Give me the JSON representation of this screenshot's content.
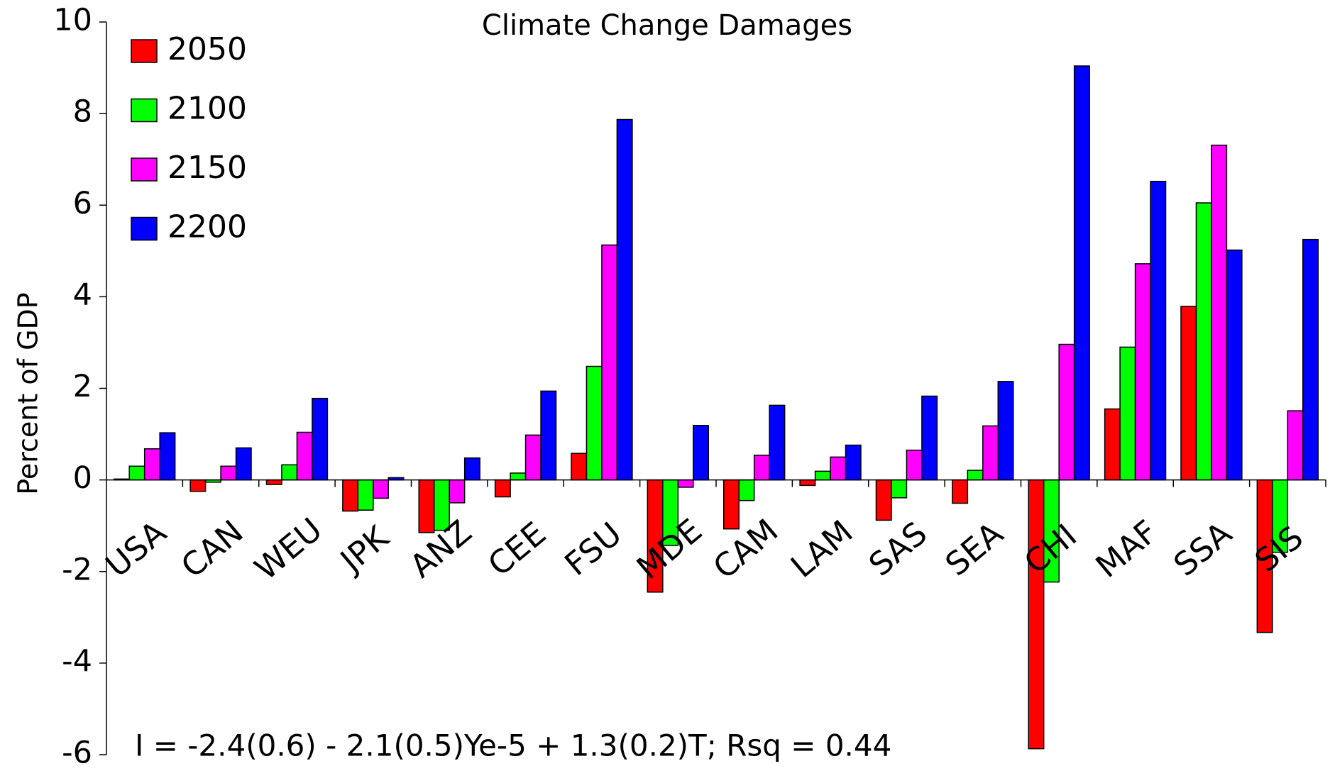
{
  "chart_data": {
    "type": "bar",
    "title": "Climate Change Damages",
    "y_axis_label": "Percent of GDP",
    "annotation": "I = -2.4(0.6) - 2.1(0.5)Ye-5 + 1.3(0.2)T; Rsq = 0.44",
    "categories": [
      "USA",
      "CAN",
      "WEU",
      "JPK",
      "ANZ",
      "CEE",
      "FSU",
      "MDE",
      "CAM",
      "LAM",
      "SAS",
      "SEA",
      "CHI",
      "MAF",
      "SSA",
      "SIS"
    ],
    "series": [
      {
        "name": "2050",
        "color": "#ff0000",
        "values": [
          0.02,
          -0.25,
          -0.1,
          -0.68,
          -1.15,
          -0.37,
          0.58,
          -2.45,
          -1.07,
          -0.12,
          -0.88,
          -0.51,
          -5.87,
          1.55,
          3.79,
          -3.33
        ]
      },
      {
        "name": "2100",
        "color": "#00ff00",
        "values": [
          0.3,
          -0.05,
          0.33,
          -0.66,
          -1.1,
          0.15,
          2.48,
          -1.43,
          -0.45,
          0.19,
          -0.39,
          0.21,
          -2.23,
          2.9,
          6.05,
          -1.58
        ]
      },
      {
        "name": "2150",
        "color": "#ff00ff",
        "values": [
          0.68,
          0.3,
          1.04,
          -0.4,
          -0.5,
          0.98,
          5.13,
          -0.16,
          0.54,
          0.5,
          0.65,
          1.18,
          2.96,
          4.72,
          7.31,
          1.51
        ]
      },
      {
        "name": "2200",
        "color": "#0000ff",
        "values": [
          1.03,
          0.7,
          1.78,
          0.05,
          0.48,
          1.94,
          7.87,
          1.19,
          1.63,
          0.76,
          1.83,
          2.15,
          9.04,
          6.52,
          5.02,
          5.25
        ]
      }
    ],
    "ylim": [
      -6,
      10
    ],
    "yticks": [
      -6,
      -4,
      -2,
      0,
      2,
      4,
      6,
      8,
      10
    ],
    "grid": false,
    "legend": "upper-left"
  }
}
